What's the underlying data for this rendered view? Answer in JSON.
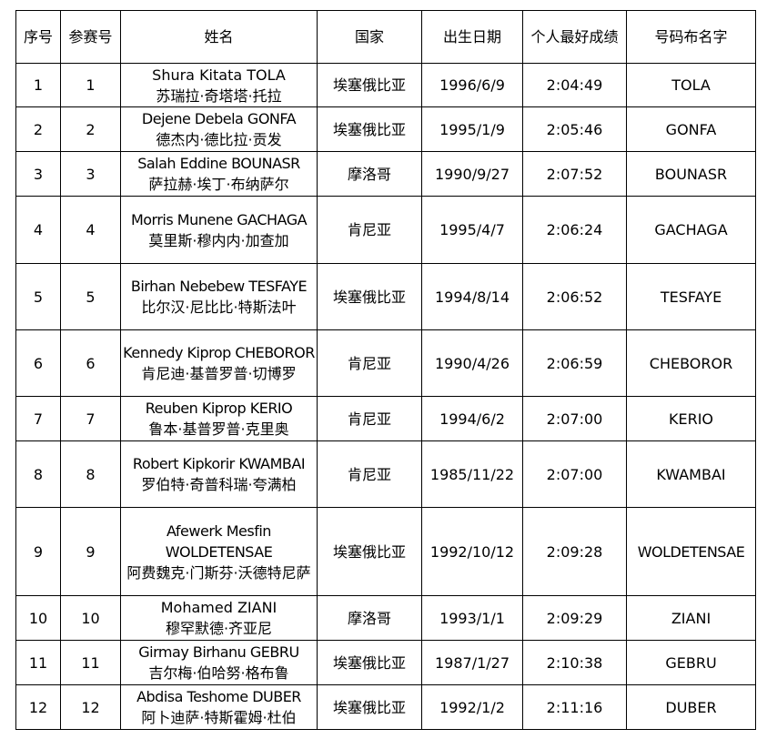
{
  "headers": [
    "序号",
    "参赛号",
    "姓名",
    "国家",
    "出生日期",
    "个人最好成绩",
    "号码布名字"
  ],
  "rows": [
    {
      "no": "1",
      "bib": "1",
      "name_en": "Shura Kitata TOLA",
      "name_zh": "苏瑞拉·奇塔塔·托拉",
      "country": "埃塞俄比亚",
      "birth": "1996/6/9",
      "pb": "2:04:49",
      "bib_name": "TOLA"
    },
    {
      "no": "2",
      "bib": "2",
      "name_en": "Dejene Debela GONFA",
      "name_zh": "德杰内·德比拉·贡发",
      "country": "埃塞俄比亚",
      "birth": "1995/1/9",
      "pb": "2:05:46",
      "bib_name": "GONFA"
    },
    {
      "no": "3",
      "bib": "3",
      "name_en": "Salah Eddine BOUNASR",
      "name_zh": "萨拉赫·埃丁·布纳萨尔",
      "country": "摩洛哥",
      "birth": "1990/9/27",
      "pb": "2:07:52",
      "bib_name": "BOUNASR"
    },
    {
      "no": "4",
      "bib": "4",
      "name_en": "Morris Munene GACHAGA",
      "name_zh": "莫里斯·穆内内·加查加",
      "country": "肯尼亚",
      "birth": "1995/4/7",
      "pb": "2:06:24",
      "bib_name": "GACHAGA"
    },
    {
      "no": "5",
      "bib": "5",
      "name_en": "Birhan Nebebew TESFAYE",
      "name_zh": "比尔汉·尼比比·特斯法叶",
      "country": "埃塞俄比亚",
      "birth": "1994/8/14",
      "pb": "2:06:52",
      "bib_name": "TESFAYE"
    },
    {
      "no": "6",
      "bib": "6",
      "name_en": "Kennedy Kiprop CHEBOROR",
      "name_zh": "肯尼迪·基普罗普·切博罗",
      "country": "肯尼亚",
      "birth": "1990/4/26",
      "pb": "2:06:59",
      "bib_name": "CHEBOROR"
    },
    {
      "no": "7",
      "bib": "7",
      "name_en": "Reuben Kiprop KERIO",
      "name_zh": "鲁本·基普罗普·克里奥",
      "country": "肯尼亚",
      "birth": "1994/6/2",
      "pb": "2:07:00",
      "bib_name": "KERIO"
    },
    {
      "no": "8",
      "bib": "8",
      "name_en": "Robert Kipkorir KWAMBAI",
      "name_zh": "罗伯特·奇普科瑞·夸满柏",
      "country": "肯尼亚",
      "birth": "1985/11/22",
      "pb": "2:07:00",
      "bib_name": "KWAMBAI"
    },
    {
      "no": "9",
      "bib": "9",
      "name_en": "Afewerk Mesfin WOLDETENSAE",
      "name_zh": "阿费魏克·门斯芬·沃德特尼萨",
      "country": "埃塞俄比亚",
      "birth": "1992/10/12",
      "pb": "2:09:28",
      "bib_name": "WOLDETENSAE"
    },
    {
      "no": "10",
      "bib": "10",
      "name_en": "Mohamed ZIANI",
      "name_zh": "穆罕默德·齐亚尼",
      "country": "摩洛哥",
      "birth": "1993/1/1",
      "pb": "2:09:29",
      "bib_name": "ZIANI"
    },
    {
      "no": "11",
      "bib": "11",
      "name_en": "Girmay Birhanu GEBRU",
      "name_zh": "吉尔梅·伯哈努·格布鲁",
      "country": "埃塞俄比亚",
      "birth": "1987/1/27",
      "pb": "2:10:38",
      "bib_name": "GEBRU"
    },
    {
      "no": "12",
      "bib": "12",
      "name_en": "Abdisa Teshome DUBER",
      "name_zh": "阿卜迪萨·特斯霍姆·杜伯",
      "country": "埃塞俄比亚",
      "birth": "1992/1/2",
      "pb": "2:11:16",
      "bib_name": "DUBER"
    }
  ]
}
